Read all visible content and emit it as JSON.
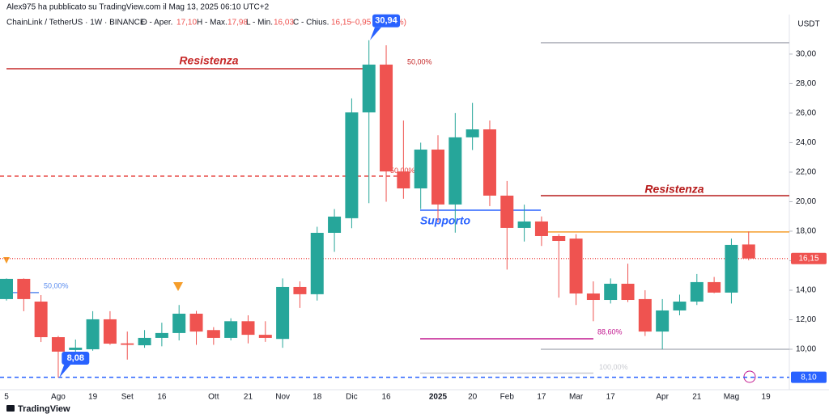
{
  "byline": "Alex975 ha pubblicato su TradingView.com il Mag 13, 2025 06:10 UTC+2",
  "header": {
    "symbol": "ChainLink / TetherUS · 1W · BINANCE",
    "open_label": "O - Aper.",
    "open": "17,10",
    "high_label": "H - Max.",
    "high": "17,98",
    "low_label": "L - Min.",
    "low": "16,03",
    "close_label": "C - Chius.",
    "close": "16,15",
    "change": "−0,95 (−5,56%)"
  },
  "currency": "USDT",
  "brand": "TradingView",
  "chart_data": {
    "type": "candlestick",
    "up_color": "#26a69a",
    "down_color": "#ef5350",
    "categories": [
      "5",
      null,
      null,
      "Ago",
      null,
      "19",
      null,
      "Set",
      null,
      "16",
      null,
      null,
      "Ott",
      null,
      "21",
      null,
      "Nov",
      null,
      "18",
      null,
      "Dic",
      null,
      "16",
      null,
      null,
      "2025",
      null,
      "20",
      null,
      "Feb",
      null,
      "17",
      null,
      "Mar",
      null,
      "17",
      null,
      null,
      "Apr",
      null,
      "21",
      null,
      "Mag",
      null,
      "19"
    ],
    "open": [
      13.4,
      14.77,
      13.23,
      10.82,
      9.95,
      10.0,
      12.03,
      10.4,
      10.27,
      10.77,
      11.1,
      12.41,
      11.3,
      10.77,
      11.9,
      10.98,
      10.7,
      14.22,
      13.73,
      17.89,
      18.88,
      26.05,
      29.29,
      22.05,
      20.9,
      23.53,
      19.81,
      24.36,
      24.9,
      20.41,
      18.22,
      18.66,
      17.67,
      17.5,
      13.78,
      13.34,
      14.44,
      13.4,
      11.2,
      12.63,
      13.23,
      14.55,
      13.84,
      17.1,
      null
    ],
    "high": [
      14.8,
      14.8,
      13.67,
      10.9,
      10.66,
      12.58,
      12.58,
      11.2,
      11.3,
      11.8,
      13.0,
      12.6,
      11.5,
      12.1,
      12.3,
      11.9,
      14.8,
      14.6,
      18.3,
      19.5,
      27.0,
      30.94,
      30.6,
      25.5,
      24.0,
      24.5,
      26.0,
      26.7,
      25.5,
      21.4,
      19.8,
      19.0,
      17.8,
      17.8,
      14.6,
      14.8,
      15.8,
      14.0,
      13.4,
      13.7,
      15.1,
      14.9,
      17.5,
      17.98,
      null
    ],
    "low": [
      13.3,
      12.58,
      10.49,
      8.08,
      9.6,
      9.9,
      10.3,
      9.3,
      10.1,
      10.2,
      10.6,
      10.3,
      10.3,
      10.6,
      10.4,
      10.5,
      10.1,
      12.8,
      13.3,
      16.6,
      18.2,
      19.9,
      20.0,
      20.2,
      19.5,
      18.6,
      17.9,
      23.5,
      19.7,
      15.4,
      17.3,
      17.0,
      13.5,
      13.0,
      11.9,
      13.1,
      13.2,
      10.9,
      10.0,
      12.3,
      13.0,
      13.8,
      13.1,
      16.03,
      null
    ],
    "close": [
      14.77,
      13.4,
      10.82,
      9.84,
      10.11,
      12.03,
      10.38,
      10.3,
      10.77,
      11.1,
      12.41,
      11.2,
      10.77,
      11.9,
      10.98,
      10.77,
      14.22,
      13.73,
      17.89,
      18.99,
      26.05,
      29.29,
      22.05,
      20.9,
      23.53,
      19.81,
      24.36,
      24.9,
      20.41,
      18.22,
      18.66,
      17.67,
      17.34,
      13.78,
      13.34,
      14.44,
      13.34,
      11.2,
      12.63,
      13.23,
      14.55,
      13.84,
      17.07,
      16.15,
      null
    ],
    "ylim": [
      7.26,
      32.68
    ],
    "yticks": [
      {
        "value": 10,
        "label": "10,00"
      },
      {
        "value": 12,
        "label": "12,00"
      },
      {
        "value": 14,
        "label": "14,00"
      },
      {
        "value": 16,
        "label": "16,00"
      },
      {
        "value": 18,
        "label": "18,00"
      },
      {
        "value": 20,
        "label": "20,00"
      },
      {
        "value": 22,
        "label": "22,00"
      },
      {
        "value": 24,
        "label": "24,00"
      },
      {
        "value": 26,
        "label": "26,00"
      },
      {
        "value": 28,
        "label": "28,00"
      },
      {
        "value": 30,
        "label": "30,00"
      }
    ],
    "lines": [
      {
        "value": 29.01,
        "color": "#c62828",
        "style": "solid",
        "label": "Resistenza",
        "note": "50,00%"
      },
      {
        "value": 21.73,
        "color": "#e53935",
        "style": "dashed",
        "note": "50,00%"
      },
      {
        "value": 20.41,
        "color": "#b71c1c",
        "style": "solid",
        "label": "Resistenza"
      },
      {
        "value": 17.95,
        "color": "#f59d2a",
        "style": "solid"
      },
      {
        "value": 19.42,
        "color": "#2962ff",
        "style": "solid",
        "label": "Supporto"
      },
      {
        "value": 10.71,
        "color": "#c2188f",
        "style": "solid",
        "note": "88,60%"
      },
      {
        "value": 30.77,
        "color": "#b2b5be",
        "style": "solid"
      },
      {
        "value": 8.38,
        "color": "#c8cad0",
        "style": "solid",
        "note": "100,00%"
      },
      {
        "value": 10.0,
        "color": "#b2b5be",
        "style": "solid"
      },
      {
        "value": 13.84,
        "color": "#5b8def",
        "style": "solid",
        "note": "50,00%"
      },
      {
        "value": 8.1,
        "color": "#2962ff",
        "style": "dashed",
        "tag": "8,10"
      },
      {
        "value": 16.15,
        "color": "#ef5350",
        "style": "dotted",
        "tag": "16,15"
      }
    ],
    "callouts": [
      {
        "value": 30.94,
        "label": "30,94"
      },
      {
        "value": 8.08,
        "label": "8,08"
      }
    ]
  }
}
